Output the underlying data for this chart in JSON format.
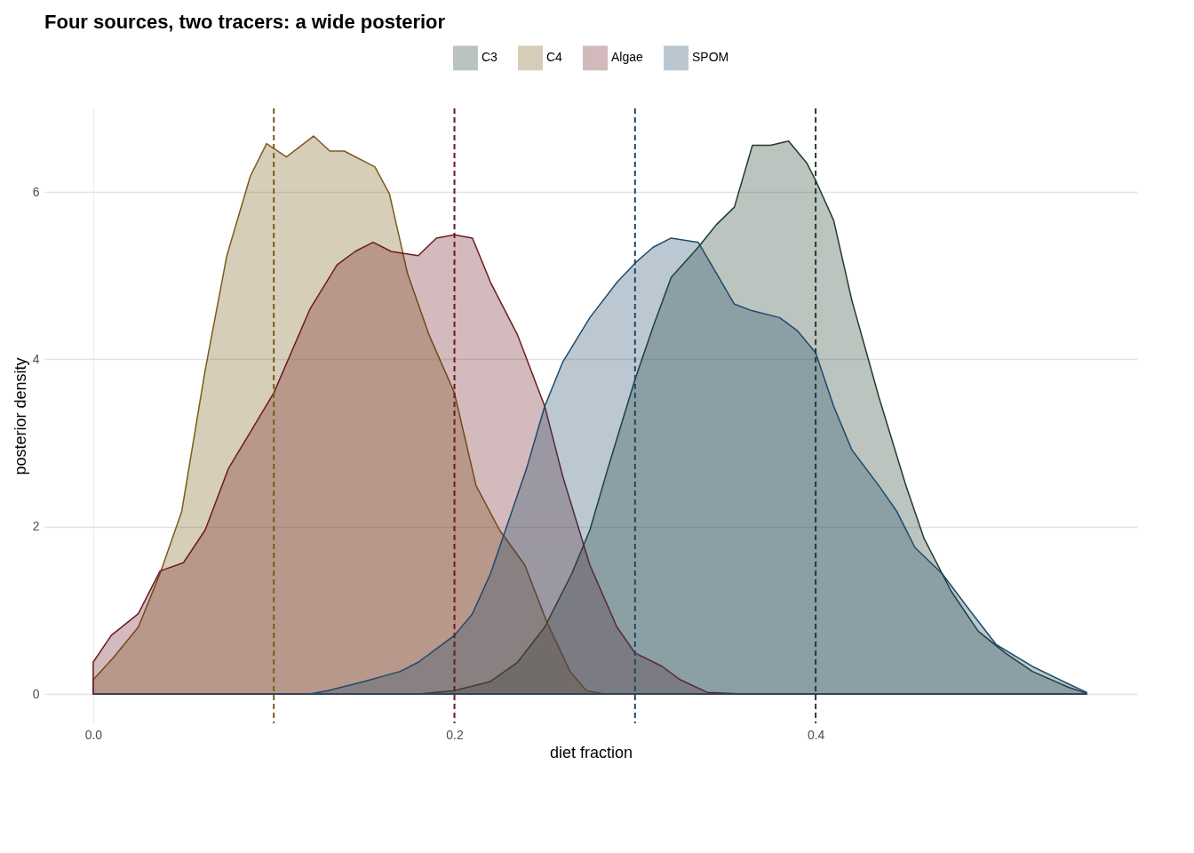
{
  "chart_data": {
    "type": "area",
    "title": "Four sources, two tracers: a wide posterior",
    "xlabel": "diet fraction",
    "ylabel": "posterior density",
    "xlim": [
      -0.027,
      0.578
    ],
    "ylim": [
      -0.35,
      7.0
    ],
    "xticks": [
      {
        "value": 0,
        "label": "0.0"
      },
      0.2,
      0.4
    ],
    "yticks": [
      0,
      2,
      4,
      6
    ],
    "grid": true,
    "legend": "top",
    "series": [
      {
        "name": "C3",
        "color": "#1f3d2b",
        "x": [
          0,
          0.18,
          0.2,
          0.22,
          0.235,
          0.25,
          0.265,
          0.275,
          0.285,
          0.3,
          0.31,
          0.32,
          0.335,
          0.345,
          0.355,
          0.365,
          0.375,
          0.385,
          0.395,
          0.4,
          0.41,
          0.42,
          0.435,
          0.45,
          0.46,
          0.475,
          0.49,
          0.505,
          0.52,
          0.54,
          0.55
        ],
        "values": [
          0,
          0,
          0.04,
          0.15,
          0.38,
          0.8,
          1.44,
          1.96,
          2.7,
          3.76,
          4.39,
          4.98,
          5.34,
          5.61,
          5.82,
          6.56,
          6.56,
          6.61,
          6.35,
          6.14,
          5.66,
          4.71,
          3.55,
          2.49,
          1.86,
          1.23,
          0.75,
          0.49,
          0.27,
          0.08,
          0.01
        ]
      },
      {
        "name": "C4",
        "color": "#7a5c17",
        "x": [
          0,
          0.011,
          0.025,
          0.037,
          0.049,
          0.062,
          0.074,
          0.087,
          0.096,
          0.107,
          0.122,
          0.131,
          0.139,
          0.156,
          0.164,
          0.174,
          0.186,
          0.2,
          0.212,
          0.225,
          0.239,
          0.251,
          0.264,
          0.273,
          0.283,
          0.55
        ],
        "values": [
          0.17,
          0.43,
          0.8,
          1.44,
          2.18,
          3.87,
          5.24,
          6.19,
          6.58,
          6.42,
          6.67,
          6.49,
          6.49,
          6.3,
          5.98,
          5.03,
          4.29,
          3.6,
          2.49,
          1.96,
          1.54,
          0.87,
          0.27,
          0.04,
          0,
          0
        ]
      },
      {
        "name": "Algae",
        "color": "#6e1a22",
        "x": [
          0,
          0.01,
          0.025,
          0.037,
          0.05,
          0.062,
          0.075,
          0.087,
          0.1,
          0.12,
          0.135,
          0.145,
          0.155,
          0.165,
          0.18,
          0.19,
          0.2,
          0.21,
          0.22,
          0.235,
          0.25,
          0.26,
          0.275,
          0.29,
          0.3,
          0.315,
          0.325,
          0.34,
          0.36,
          0.55
        ],
        "values": [
          0.38,
          0.7,
          0.96,
          1.47,
          1.57,
          1.96,
          2.7,
          3.13,
          3.6,
          4.6,
          5.13,
          5.29,
          5.4,
          5.29,
          5.24,
          5.45,
          5.49,
          5.45,
          4.92,
          4.29,
          3.44,
          2.6,
          1.54,
          0.8,
          0.49,
          0.33,
          0.17,
          0.02,
          0,
          0
        ]
      },
      {
        "name": "SPOM",
        "color": "#1f4a6b",
        "x": [
          0,
          0.12,
          0.13,
          0.15,
          0.17,
          0.18,
          0.2,
          0.21,
          0.22,
          0.23,
          0.24,
          0.25,
          0.26,
          0.275,
          0.29,
          0.3,
          0.31,
          0.32,
          0.335,
          0.345,
          0.355,
          0.365,
          0.38,
          0.39,
          0.4,
          0.41,
          0.42,
          0.435,
          0.445,
          0.455,
          0.47,
          0.485,
          0.5,
          0.52,
          0.54,
          0.55
        ],
        "values": [
          0,
          0,
          0.04,
          0.15,
          0.27,
          0.38,
          0.7,
          0.96,
          1.44,
          2.07,
          2.7,
          3.44,
          3.97,
          4.5,
          4.92,
          5.15,
          5.34,
          5.45,
          5.4,
          5.03,
          4.66,
          4.58,
          4.5,
          4.34,
          4.08,
          3.44,
          2.92,
          2.49,
          2.18,
          1.75,
          1.44,
          1.01,
          0.59,
          0.33,
          0.12,
          0.02
        ]
      }
    ],
    "ref_lines": [
      {
        "axis": "x",
        "value": 0.1,
        "color": "#7a5c17",
        "line_style": "dashed"
      },
      {
        "axis": "x",
        "value": 0.2,
        "color": "#6e1a22",
        "line_style": "dashed"
      },
      {
        "axis": "x",
        "value": 0.3,
        "color": "#1f4a6b",
        "line_style": "dashed"
      },
      {
        "axis": "x",
        "value": 0.4,
        "color": "#1f3d2b",
        "line_style": "dashed"
      }
    ]
  }
}
